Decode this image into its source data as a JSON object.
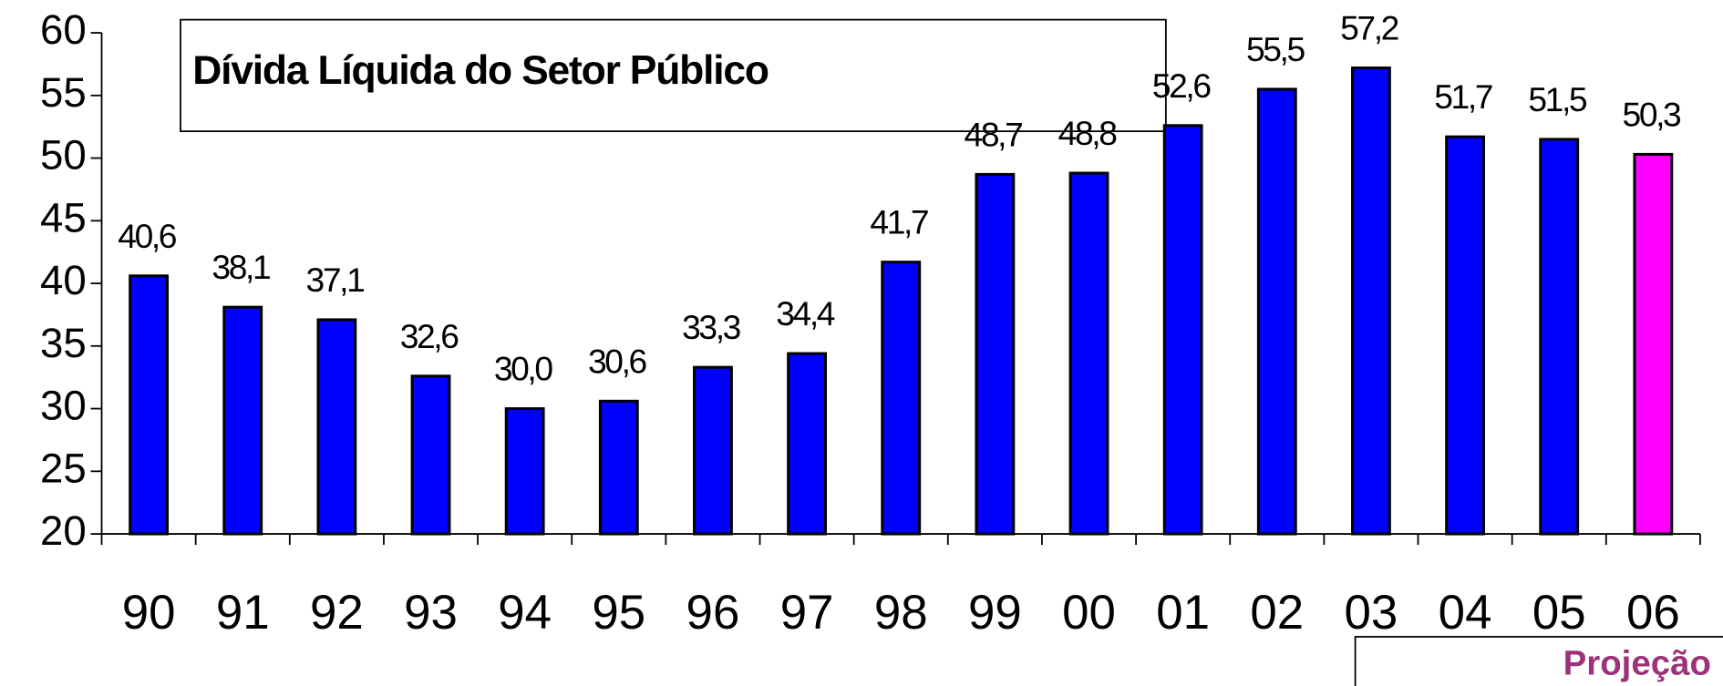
{
  "chart_data": {
    "type": "bar",
    "title": "Dívida Líquida do Setor Público",
    "annotation": "Projeção",
    "categories": [
      "90",
      "91",
      "92",
      "93",
      "94",
      "95",
      "96",
      "97",
      "98",
      "99",
      "00",
      "01",
      "02",
      "03",
      "04",
      "05",
      "06"
    ],
    "values": [
      40.6,
      38.1,
      37.1,
      32.6,
      30.0,
      30.6,
      33.3,
      34.4,
      41.7,
      48.7,
      48.8,
      52.6,
      55.5,
      57.2,
      51.7,
      51.5,
      50.3
    ],
    "value_labels": [
      "40,6",
      "38,1",
      "37,1",
      "32,6",
      "30,0",
      "30,6",
      "33,3",
      "34,4",
      "41,7",
      "48,7",
      "48,8",
      "52,6",
      "55,5",
      "57,2",
      "51,7",
      "51,5",
      "50,3"
    ],
    "colors": [
      "#0000ff",
      "#0000ff",
      "#0000ff",
      "#0000ff",
      "#0000ff",
      "#0000ff",
      "#0000ff",
      "#0000ff",
      "#0000ff",
      "#0000ff",
      "#0000ff",
      "#0000ff",
      "#0000ff",
      "#0000ff",
      "#0000ff",
      "#0000ff",
      "#ff00ff"
    ],
    "ylim": [
      20,
      60
    ],
    "yticks": [
      20,
      25,
      30,
      35,
      40,
      45,
      50,
      55,
      60
    ],
    "grid": false
  }
}
